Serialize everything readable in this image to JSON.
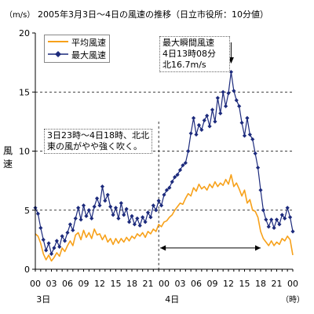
{
  "chart_data": {
    "type": "line",
    "title": "2005年3月3日～4日の風速の推移（日立市役所：10分値）",
    "unit_label": "（m/s）",
    "ylabel": "風速",
    "ylim": [
      0,
      20
    ],
    "yticks": [
      0,
      5,
      10,
      15,
      20
    ],
    "xlim": [
      0,
      48
    ],
    "xunit": "hour since 3日 00時",
    "x_tick_labels": [
      "00",
      "03",
      "06",
      "09",
      "12",
      "15",
      "18",
      "21",
      "00",
      "03",
      "06",
      "09",
      "12",
      "15",
      "18",
      "21",
      "00"
    ],
    "x_tick_hours": [
      0,
      3,
      6,
      9,
      12,
      15,
      18,
      21,
      24,
      27,
      30,
      33,
      36,
      39,
      42,
      45,
      48
    ],
    "day_labels": [
      {
        "label": "3日",
        "hour": 1.5
      },
      {
        "label": "4日",
        "hour": 25.5
      }
    ],
    "x_unit_label": "（時）",
    "grid": "horizontal dashed at 5, 10, 15",
    "legend": "top-left",
    "series": [
      {
        "name": "平均風速",
        "color": "#f7a11a",
        "marker": "none",
        "points": [
          [
            0,
            3.0
          ],
          [
            0.5,
            2.8
          ],
          [
            1,
            2.2
          ],
          [
            1.5,
            1.3
          ],
          [
            2,
            0.8
          ],
          [
            2.5,
            1.2
          ],
          [
            3,
            0.7
          ],
          [
            3.5,
            1.0
          ],
          [
            4,
            1.4
          ],
          [
            4.5,
            1.1
          ],
          [
            5,
            1.8
          ],
          [
            5.5,
            1.5
          ],
          [
            6,
            2.0
          ],
          [
            6.5,
            2.4
          ],
          [
            7,
            2.0
          ],
          [
            7.5,
            2.9
          ],
          [
            8,
            3.1
          ],
          [
            8.5,
            2.5
          ],
          [
            9,
            3.3
          ],
          [
            9.5,
            2.7
          ],
          [
            10,
            3.1
          ],
          [
            10.5,
            2.6
          ],
          [
            11,
            3.4
          ],
          [
            11.5,
            2.9
          ],
          [
            12,
            3.0
          ],
          [
            12.5,
            2.5
          ],
          [
            13,
            2.9
          ],
          [
            13.5,
            2.3
          ],
          [
            14,
            2.6
          ],
          [
            14.5,
            2.1
          ],
          [
            15,
            2.6
          ],
          [
            15.5,
            2.2
          ],
          [
            16,
            2.6
          ],
          [
            16.5,
            2.3
          ],
          [
            17,
            2.7
          ],
          [
            17.5,
            2.4
          ],
          [
            18,
            2.8
          ],
          [
            18.5,
            2.6
          ],
          [
            19,
            3.0
          ],
          [
            19.5,
            2.8
          ],
          [
            20,
            3.1
          ],
          [
            20.5,
            2.7
          ],
          [
            21,
            3.2
          ],
          [
            21.5,
            3.0
          ],
          [
            22,
            3.4
          ],
          [
            22.5,
            3.2
          ],
          [
            23,
            3.8
          ],
          [
            23.5,
            3.6
          ],
          [
            24,
            4.0
          ],
          [
            24.5,
            4.1
          ],
          [
            25,
            4.4
          ],
          [
            25.5,
            4.6
          ],
          [
            26,
            5.0
          ],
          [
            26.5,
            5.3
          ],
          [
            27,
            5.6
          ],
          [
            27.5,
            5.5
          ],
          [
            28,
            6.0
          ],
          [
            28.5,
            6.4
          ],
          [
            29,
            6.2
          ],
          [
            29.5,
            6.9
          ],
          [
            30,
            6.6
          ],
          [
            30.5,
            7.2
          ],
          [
            31,
            6.8
          ],
          [
            31.5,
            7.0
          ],
          [
            32,
            6.7
          ],
          [
            32.5,
            7.2
          ],
          [
            33,
            6.9
          ],
          [
            33.5,
            7.4
          ],
          [
            34,
            7.0
          ],
          [
            34.5,
            7.3
          ],
          [
            35,
            7.1
          ],
          [
            35.5,
            7.6
          ],
          [
            36,
            7.2
          ],
          [
            36.5,
            8.0
          ],
          [
            37,
            7.0
          ],
          [
            37.5,
            7.3
          ],
          [
            38,
            6.8
          ],
          [
            38.5,
            6.2
          ],
          [
            39,
            6.7
          ],
          [
            39.5,
            5.6
          ],
          [
            40,
            5.9
          ],
          [
            40.5,
            5.0
          ],
          [
            41,
            4.9
          ],
          [
            41.5,
            4.4
          ],
          [
            42,
            3.2
          ],
          [
            42.5,
            2.6
          ],
          [
            43,
            2.3
          ],
          [
            43.5,
            2.0
          ],
          [
            44,
            2.4
          ],
          [
            44.5,
            2.0
          ],
          [
            45,
            2.3
          ],
          [
            45.5,
            2.1
          ],
          [
            46,
            2.6
          ],
          [
            46.5,
            2.4
          ],
          [
            47,
            2.8
          ],
          [
            47.5,
            2.5
          ],
          [
            48,
            1.2
          ]
        ]
      },
      {
        "name": "最大風速",
        "color": "#1c2a7c",
        "marker": "diamond",
        "points": [
          [
            0,
            5.2
          ],
          [
            0.5,
            4.7
          ],
          [
            1,
            3.5
          ],
          [
            1.5,
            2.5
          ],
          [
            2,
            1.6
          ],
          [
            2.5,
            2.2
          ],
          [
            3,
            1.3
          ],
          [
            3.5,
            1.8
          ],
          [
            4,
            2.4
          ],
          [
            4.5,
            1.9
          ],
          [
            5,
            2.8
          ],
          [
            5.5,
            2.4
          ],
          [
            6,
            3.1
          ],
          [
            6.5,
            3.8
          ],
          [
            7,
            3.3
          ],
          [
            7.5,
            4.3
          ],
          [
            8,
            5.2
          ],
          [
            8.5,
            4.2
          ],
          [
            9,
            5.4
          ],
          [
            9.5,
            4.5
          ],
          [
            10,
            5.0
          ],
          [
            10.5,
            4.3
          ],
          [
            11,
            5.3
          ],
          [
            11.5,
            6.0
          ],
          [
            12,
            5.4
          ],
          [
            12.5,
            7.0
          ],
          [
            13,
            5.8
          ],
          [
            13.5,
            6.3
          ],
          [
            14,
            5.3
          ],
          [
            14.5,
            4.6
          ],
          [
            15,
            5.2
          ],
          [
            15.5,
            4.3
          ],
          [
            16,
            5.6
          ],
          [
            16.5,
            4.6
          ],
          [
            17,
            5.1
          ],
          [
            17.5,
            4.0
          ],
          [
            18,
            4.5
          ],
          [
            18.5,
            3.8
          ],
          [
            19,
            4.3
          ],
          [
            19.5,
            3.7
          ],
          [
            20,
            4.4
          ],
          [
            20.5,
            4.0
          ],
          [
            21,
            4.8
          ],
          [
            21.5,
            4.4
          ],
          [
            22,
            5.4
          ],
          [
            22.5,
            5.0
          ],
          [
            23,
            5.8
          ],
          [
            23.5,
            5.4
          ],
          [
            24,
            6.3
          ],
          [
            24.5,
            6.7
          ],
          [
            25,
            6.9
          ],
          [
            25.5,
            7.4
          ],
          [
            26,
            7.8
          ],
          [
            26.5,
            8.0
          ],
          [
            27,
            8.4
          ],
          [
            27.5,
            8.8
          ],
          [
            28,
            9.0
          ],
          [
            28.5,
            10.0
          ],
          [
            29,
            11.5
          ],
          [
            29.5,
            12.8
          ],
          [
            30,
            11.4
          ],
          [
            30.5,
            12.2
          ],
          [
            31,
            11.8
          ],
          [
            31.5,
            12.6
          ],
          [
            32,
            13.0
          ],
          [
            32.5,
            12.1
          ],
          [
            33,
            13.5
          ],
          [
            33.5,
            12.5
          ],
          [
            34,
            14.5
          ],
          [
            34.5,
            13.2
          ],
          [
            35,
            15.0
          ],
          [
            35.5,
            13.8
          ],
          [
            36,
            14.9
          ],
          [
            36.5,
            16.7
          ],
          [
            37,
            15.1
          ],
          [
            37.5,
            14.3
          ],
          [
            38,
            13.8
          ],
          [
            38.5,
            12.4
          ],
          [
            39,
            11.3
          ],
          [
            39.5,
            12.8
          ],
          [
            40,
            11.4
          ],
          [
            40.5,
            11.0
          ],
          [
            41,
            9.8
          ],
          [
            41.5,
            8.6
          ],
          [
            42,
            6.7
          ],
          [
            42.5,
            5.0
          ],
          [
            43,
            4.2
          ],
          [
            43.5,
            3.6
          ],
          [
            44,
            4.2
          ],
          [
            44.5,
            3.5
          ],
          [
            45,
            4.2
          ],
          [
            45.5,
            3.8
          ],
          [
            46,
            4.6
          ],
          [
            46.5,
            4.3
          ],
          [
            47,
            5.2
          ],
          [
            47.5,
            4.4
          ],
          [
            48,
            3.2
          ]
        ]
      }
    ],
    "markers": {
      "vertical_dashed_hour": 23,
      "span_arrow": {
        "from_hour": 23,
        "to_hour": 42,
        "y": 1.8
      },
      "peak_arrow_hour": 36.5
    },
    "annotations": {
      "left_note": [
        "3日23時～4日18時、北北",
        "東の風がやや強く吹く。"
      ],
      "peak_note": [
        "最大瞬間風速",
        "4日13時08分",
        "北16.7m/s"
      ]
    }
  }
}
